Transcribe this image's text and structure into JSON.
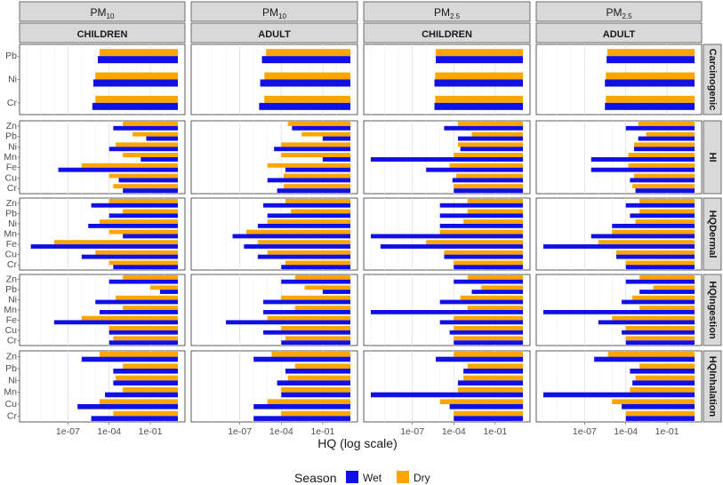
{
  "chart_data": {
    "type": "bar",
    "orientation": "horizontal",
    "xlabel": "HQ (log scale)",
    "x_scale": "log10",
    "xlim": [
      1e-10,
      10
    ],
    "x_ticks": [
      "1e-07",
      "1e-04",
      "1e-01"
    ],
    "x_tick_values": [
      1e-07,
      0.0001,
      0.1
    ],
    "grid": true,
    "colors": {
      "Wet": "#1010e6",
      "Dry": "#ffa500",
      "strip": "#d9d9d9"
    },
    "legend": {
      "title": "Season",
      "position": "bottom",
      "entries": [
        "Wet",
        "Dry"
      ]
    },
    "column_strips": [
      {
        "base": "PM",
        "sub": "10",
        "group": "CHILDREN"
      },
      {
        "base": "PM",
        "sub": "10",
        "group": "ADULT"
      },
      {
        "base": "PM",
        "sub": "2.5",
        "group": "CHILDREN"
      },
      {
        "base": "PM",
        "sub": "2.5",
        "group": "ADULT"
      }
    ],
    "row_strips": [
      "Carcinogenic",
      "HI",
      "HQDermal",
      "HQIngestion",
      "HQInhalation"
    ],
    "rows": [
      {
        "metric": "Carcinogenic",
        "elements": [
          "Pb",
          "Ni",
          "Cr"
        ],
        "panels": [
          {
            "Wet": [
              1.5e-05,
              7e-06,
              6e-06
            ],
            "Dry": [
              2e-05,
              1e-05,
              1e-05
            ]
          },
          {
            "Wet": [
              4e-06,
              3e-06,
              2.5e-06
            ],
            "Dry": [
              8e-06,
              6e-06,
              6e-06
            ]
          },
          {
            "Wet": [
              5e-06,
              4e-06,
              4e-06
            ],
            "Dry": [
              5e-06,
              4.5e-06,
              4.5e-06
            ]
          },
          {
            "Wet": [
              4e-06,
              3e-06,
              3e-06
            ],
            "Dry": [
              4.5e-06,
              3.5e-06,
              3.5e-06
            ]
          }
        ]
      },
      {
        "metric": "HI",
        "elements": [
          "Zn",
          "Pb",
          "Ni",
          "Mn",
          "Fe",
          "Cu",
          "Cr"
        ],
        "panels": [
          {
            "Wet": [
              0.0002,
              0.05,
              0.0001,
              0.02,
              2e-08,
              0.0005,
              0.001
            ],
            "Dry": [
              0.001,
              0.005,
              0.0003,
              0.001,
              1e-06,
              0.0001,
              0.0002
            ]
          },
          {
            "Wet": [
              0.0006,
              0.1,
              3e-05,
              0.1,
              0.0002,
              1e-05,
              5e-05
            ],
            "Dry": [
              0.0003,
              0.003,
              0.0001,
              0.0001,
              1e-05,
              0.00015,
              0.00015
            ]
          },
          {
            "Wet": [
              2e-05,
              0.0002,
              0.0003,
              1e-10,
              1e-06,
              8e-05,
              0.0001
            ],
            "Dry": [
              0.0002,
              0.002,
              0.0002,
              0.0001,
              5e-05,
              0.00015,
              0.0001
            ]
          },
          {
            "Wet": [
              0.0001,
              0.0008,
              0.0004,
              3e-07,
              3e-07,
              0.0002,
              0.0005
            ],
            "Dry": [
              0.0008,
              0.003,
              0.0004,
              0.00015,
              0.00015,
              0.0004,
              0.0003
            ]
          }
        ]
      },
      {
        "metric": "HQDermal",
        "elements": [
          "Zn",
          "Pb",
          "Ni",
          "Mn",
          "Fe",
          "Cu",
          "Cr"
        ],
        "panels": [
          {
            "Wet": [
              5e-06,
              0.0001,
              3e-06,
              0.001,
              2e-10,
              1e-06,
              0.0002
            ],
            "Dry": [
              0.0001,
              0.001,
              2e-05,
              0.0001,
              1e-08,
              1e-05,
              0.0001
            ]
          },
          {
            "Wet": [
              5e-06,
              1e-05,
              2e-06,
              3e-08,
              2e-07,
              2e-06,
              0.0001
            ],
            "Dry": [
              0.0002,
              0.0005,
              1e-05,
              3e-07,
              2e-06,
              1e-05,
              0.0002
            ]
          },
          {
            "Wet": [
              1e-05,
              1e-05,
              1e-05,
              1e-10,
              5e-10,
              2e-05,
              0.0001
            ],
            "Dry": [
              0.001,
              0.001,
              0.0005,
              1e-05,
              1e-06,
              2e-05,
              0.0001
            ]
          },
          {
            "Wet": [
              0.0001,
              0.0002,
              1e-05,
              3e-07,
              1e-10,
              2e-05,
              0.0001
            ],
            "Dry": [
              0.001,
              0.001,
              0.0005,
              1e-05,
              1e-06,
              2e-05,
              0.0001
            ]
          }
        ]
      },
      {
        "metric": "HQIngestion",
        "elements": [
          "Zn",
          "Pb",
          "Ni",
          "Mn",
          "Fe",
          "Cu",
          "Cr"
        ],
        "panels": [
          {
            "Wet": [
              0.0001,
              0.5,
              1e-05,
              2e-05,
              1e-08,
              0.0001,
              0.0001
            ],
            "Dry": [
              0.001,
              0.1,
              0.0003,
              0.001,
              1e-06,
              0.0001,
              0.0002
            ]
          },
          {
            "Wet": [
              0.0001,
              0.1,
              5e-06,
              5e-06,
              1e-08,
              5e-06,
              0.0001
            ],
            "Dry": [
              0.001,
              0.005,
              0.0001,
              0.001,
              1e-05,
              0.0001,
              0.0002
            ]
          },
          {
            "Wet": [
              0.0001,
              0.002,
              1e-05,
              1e-10,
              1e-05,
              5e-05,
              0.0001
            ],
            "Dry": [
              0.001,
              0.01,
              0.0003,
              0.001,
              0.0001,
              0.0001,
              0.0001
            ]
          },
          {
            "Wet": [
              0.0001,
              0.001,
              5e-05,
              1e-10,
              1e-06,
              5e-05,
              0.0001
            ],
            "Dry": [
              0.001,
              0.01,
              0.0003,
              0.001,
              1e-05,
              0.0001,
              0.0001
            ]
          }
        ]
      },
      {
        "metric": "HQInhalation",
        "elements": [
          "Zn",
          "Pb",
          "Ni",
          "Mn",
          "Cu",
          "Cr"
        ],
        "panels": [
          {
            "Wet": [
              1e-06,
              0.0002,
              0.0002,
              5e-05,
              5e-07,
              5e-06
            ],
            "Dry": [
              2e-05,
              0.001,
              0.0003,
              0.001,
              2e-05,
              0.0002
            ]
          },
          {
            "Wet": [
              1e-06,
              0.0002,
              5e-05,
              0.0001,
              1e-06,
              1e-06
            ],
            "Dry": [
              2e-05,
              0.001,
              0.0003,
              0.0001,
              1e-05,
              0.0001
            ]
          },
          {
            "Wet": [
              5e-06,
              0.0005,
              0.0002,
              1e-10,
              5e-05,
              0.0001
            ],
            "Dry": [
              0.0001,
              0.001,
              0.0005,
              0.0002,
              1e-05,
              0.0001
            ]
          },
          {
            "Wet": [
              5e-07,
              0.0002,
              0.0003,
              1e-10,
              5e-05,
              0.0001
            ],
            "Dry": [
              5e-06,
              0.001,
              0.0005,
              0.0002,
              1e-05,
              0.0001
            ]
          }
        ]
      }
    ]
  }
}
